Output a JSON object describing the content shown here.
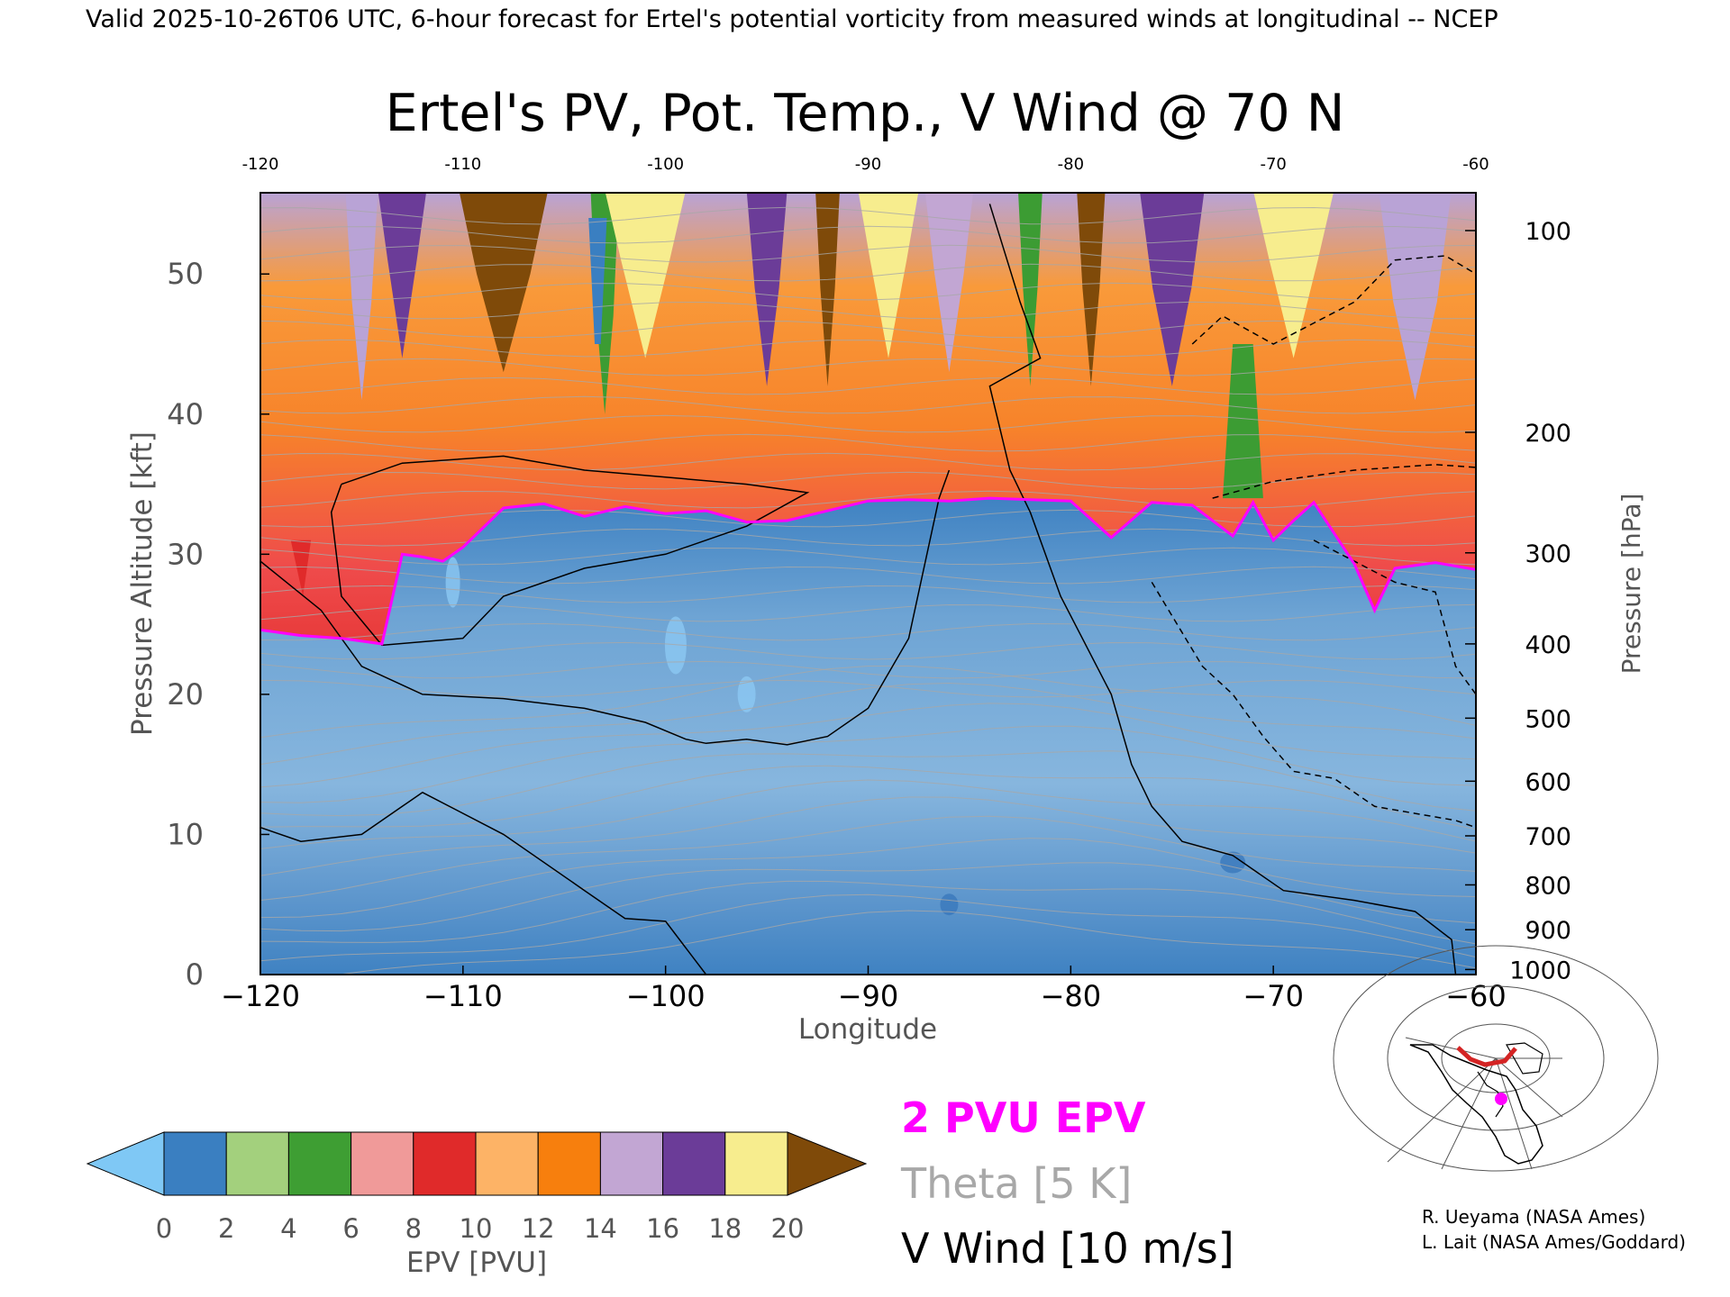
{
  "header": {
    "valid_line": "Valid 2025-10-26T06 UTC, 6-hour forecast for Ertel's potential vorticity from measured winds at longitudinal -- NCEP"
  },
  "chart_data": {
    "type": "heatmap",
    "title": "Ertel's PV, Pot. Temp., V Wind @ 70 N",
    "xlabel": "Longitude",
    "ylabel_left": "Pressure Altitude [kft]",
    "ylabel_right": "Pressure [hPa]",
    "xlim": [
      -120,
      -60
    ],
    "ylim": [
      0,
      55.8
    ],
    "x_ticks": [
      -120,
      -110,
      -100,
      -90,
      -80,
      -70,
      -60
    ],
    "x_tick_labels": [
      "−120",
      "−110",
      "−100",
      "−90",
      "−80",
      "−70",
      "−60"
    ],
    "top_tick_labels": [
      "-120",
      "-110",
      "-100",
      "-90",
      "-80",
      "-70",
      "-60"
    ],
    "y_ticks": [
      0,
      10,
      20,
      30,
      40,
      50
    ],
    "y_tick_labels": [
      "0",
      "10",
      "20",
      "30",
      "40",
      "50"
    ],
    "pressure_ticks": [
      {
        "hpa": 100,
        "kft": 53.1
      },
      {
        "hpa": 200,
        "kft": 38.7
      },
      {
        "hpa": 300,
        "kft": 30.1
      },
      {
        "hpa": 400,
        "kft": 23.6
      },
      {
        "hpa": 500,
        "kft": 18.3
      },
      {
        "hpa": 600,
        "kft": 13.8
      },
      {
        "hpa": 700,
        "kft": 9.9
      },
      {
        "hpa": 800,
        "kft": 6.4
      },
      {
        "hpa": 900,
        "kft": 3.2
      },
      {
        "hpa": 1000,
        "kft": 0.36
      }
    ],
    "tropopause_2pvu": {
      "x": [
        -120,
        -118,
        -116,
        -114,
        -113,
        -112,
        -111,
        -110,
        -108,
        -106,
        -104,
        -102,
        -100,
        -98,
        -96,
        -94,
        -92,
        -90,
        -88,
        -86,
        -84,
        -82,
        -80,
        -78,
        -76,
        -74,
        -72,
        -71,
        -70,
        -69,
        -68,
        -66,
        -65,
        -64,
        -62,
        -60
      ],
      "kft": [
        24.6,
        24.2,
        24.0,
        23.6,
        30.0,
        29.8,
        29.5,
        30.5,
        33.3,
        33.6,
        32.7,
        33.4,
        32.9,
        33.1,
        32.3,
        32.4,
        33.1,
        33.8,
        33.9,
        33.8,
        34.0,
        33.9,
        33.8,
        31.2,
        33.7,
        33.5,
        31.3,
        33.7,
        31.0,
        32.4,
        33.7,
        29.3,
        26.0,
        29.0,
        29.4,
        28.9
      ]
    },
    "legend": {
      "label": "EPV [PVU]",
      "ticks": [
        "0",
        "2",
        "4",
        "6",
        "8",
        "10",
        "12",
        "14",
        "16",
        "18",
        "20"
      ],
      "colors": [
        "#3a7fc1",
        "#a3d07d",
        "#3e9e33",
        "#f09a99",
        "#e02a2a",
        "#fdb366",
        "#f77f0d",
        "#c2a6d3",
        "#6b3c98",
        "#f7ed8e"
      ],
      "under_color": "#7fc8f5",
      "over_color": "#7f4a09",
      "line_items": [
        {
          "label": "2 PVU EPV",
          "color": "#ff00ff"
        },
        {
          "label": "Theta [5 K]",
          "color": "#a8a8a8"
        },
        {
          "label": "V Wind [10 m/s]",
          "color": "#000000"
        }
      ]
    }
  },
  "credits": {
    "line1": "R. Ueyama (NASA Ames)",
    "line2": "L. Lait (NASA Ames/Goddard)"
  },
  "colors": {
    "tropopause": "#ff00ff",
    "theta": "#a8a8a8",
    "wind": "#000000"
  }
}
